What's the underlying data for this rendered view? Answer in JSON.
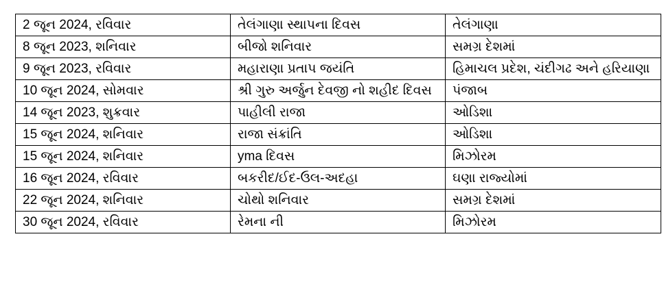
{
  "table": {
    "rows": [
      [
        "2 જૂન 2024, રવિવાર",
        "તેલંગાણા સ્થાપના દિવસ",
        "તેલંગાણા"
      ],
      [
        "8 જૂન 2023, શનિવાર",
        "બીજો શનિવાર",
        "સમગ્ર દેશમાં"
      ],
      [
        "9 જૂન 2023, રવિવાર",
        "મહારાણા પ્રતાપ જયંતિ",
        "હિમાચલ પ્રદેશ, ચંદીગઢ અને હરિયાણા"
      ],
      [
        "10 જૂન 2024, સોમવાર",
        "શ્રી ગુરુ અર્જુન દેવજી નો શહીદ દિવસ",
        "પંજાબ"
      ],
      [
        "14 જૂન 2023, શુક્રવાર",
        "પાહીલી રાજા",
        "ઓડિશા"
      ],
      [
        "15 જૂન 2024, શનિવાર",
        "રાજા સંક્રાંતિ",
        "ઓડિશા"
      ],
      [
        "15 જૂન 2024, શનિવાર",
        "yma દિવસ",
        "મિઝોરમ"
      ],
      [
        "16 જૂન 2024, રવિવાર",
        "બકરીદ/ઈદ-ઉલ-અદહા",
        "ઘણા રાજ્યોમાં"
      ],
      [
        "22 જૂન 2024, શનિવાર",
        "ચોથો શનિવાર",
        "સમગ્ર દેશમાં"
      ],
      [
        "30 જૂન 2024, રવિવાર",
        "રેમના ની",
        "મિઝોરમ"
      ]
    ]
  }
}
